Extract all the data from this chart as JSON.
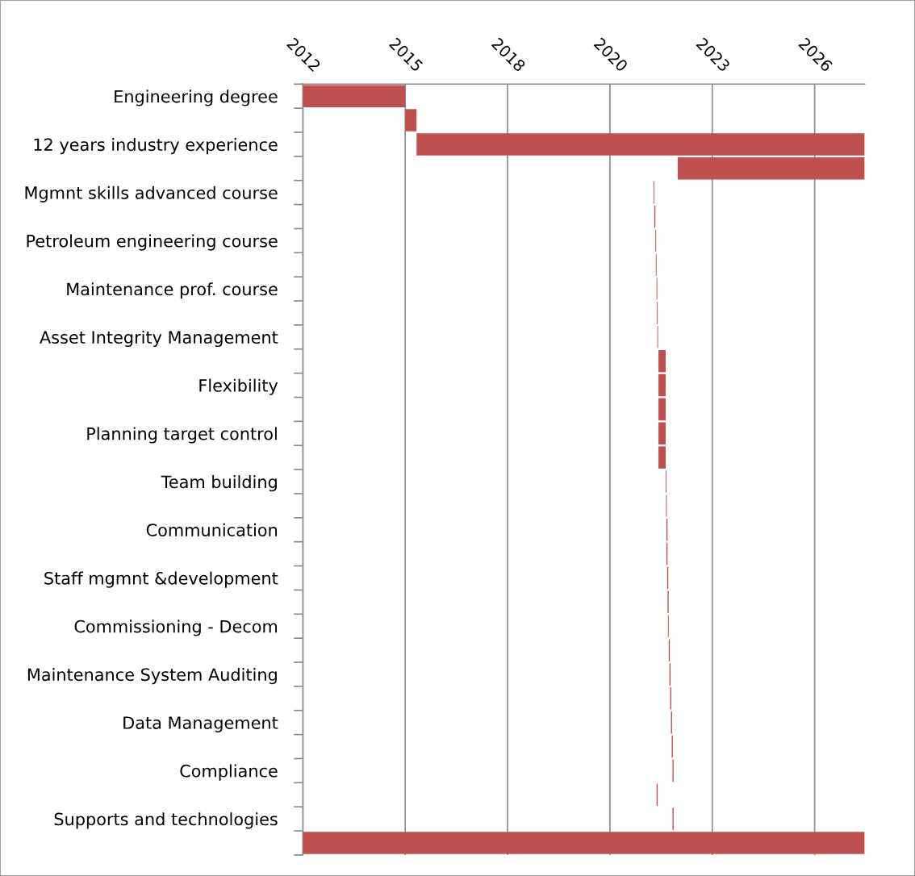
{
  "chart_data": {
    "type": "bar",
    "orientation": "horizontal",
    "grid": "x",
    "legend": false,
    "categories": [
      "Engineering degree",
      null,
      "12 years industry experience",
      null,
      "Mgmnt skills advanced course",
      null,
      "Petroleum engineering course",
      null,
      "Maintenance prof. course",
      null,
      "Asset Integrity Management",
      null,
      "Flexibility",
      null,
      "Planning target control",
      null,
      "Team building",
      null,
      "Communication",
      null,
      "Staff mgmnt &development",
      null,
      "Commissioning - Decom",
      null,
      "Maintenance System Auditing",
      null,
      "Data Management",
      null,
      "Compliance",
      null,
      "Supports and technologies",
      null
    ],
    "base": [
      2012.2,
      2014.9,
      2015.2,
      2022.09,
      2021.45,
      2021.47,
      2021.5,
      2021.51,
      2021.53,
      2021.54,
      2021.55,
      2021.58,
      2021.58,
      2021.58,
      2021.58,
      2021.58,
      2021.77,
      2021.78,
      2021.79,
      2021.79,
      2021.81,
      2021.82,
      2021.83,
      2021.85,
      2021.87,
      2021.89,
      2021.91,
      2021.93,
      2021.95,
      2021.53,
      2021.95,
      2012.2
    ],
    "values": [
      2.7,
      0.3,
      11.82,
      4.93,
      0.02,
      0.03,
      0.02,
      0.02,
      0.02,
      0.02,
      0.02,
      0.19,
      0.19,
      0.19,
      0.19,
      0.19,
      0.02,
      0.02,
      0.03,
      0.03,
      0.03,
      0.03,
      0.02,
      0.03,
      0.03,
      0.03,
      0.03,
      0.03,
      0.03,
      0.03,
      0.03,
      14.82
    ],
    "color": "#c0504d",
    "xlim": [
      2012.2,
      2027.02
    ],
    "xticks": [
      {
        "value": 2012.2,
        "label": "2012"
      },
      {
        "value": 2014.9,
        "label": "2015"
      },
      {
        "value": 2017.6,
        "label": "2018"
      },
      {
        "value": 2020.3,
        "label": "2020"
      },
      {
        "value": 2023.0,
        "label": "2023"
      },
      {
        "value": 2025.7,
        "label": "2026"
      }
    ]
  }
}
